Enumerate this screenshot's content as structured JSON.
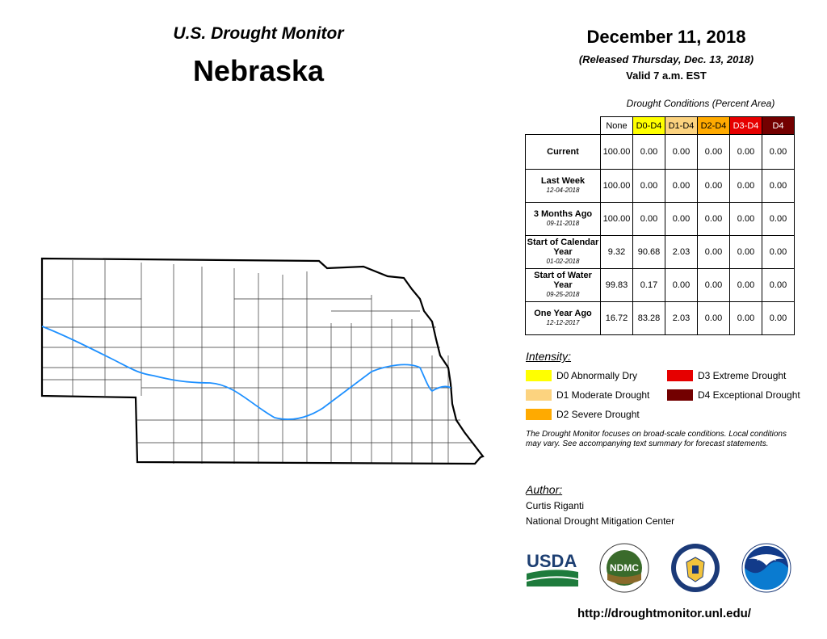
{
  "header": {
    "subtitle": "U.S. Drought Monitor",
    "state": "Nebraska"
  },
  "date": {
    "main": "December 11, 2018",
    "released": "(Released Thursday, Dec. 13, 2018)",
    "valid": "Valid 7 a.m. EST"
  },
  "table": {
    "caption": "Drought Conditions (Percent Area)",
    "columns": [
      {
        "label": "None",
        "color": "#ffffff"
      },
      {
        "label": "D0-D4",
        "color": "#ffff00"
      },
      {
        "label": "D1-D4",
        "color": "#fcd37f"
      },
      {
        "label": "D2-D4",
        "color": "#ffaa00"
      },
      {
        "label": "D3-D4",
        "color": "#e60000"
      },
      {
        "label": "D4",
        "color": "#730000"
      }
    ],
    "rows": [
      {
        "label": "Current",
        "date": "",
        "values": [
          "100.00",
          "0.00",
          "0.00",
          "0.00",
          "0.00",
          "0.00"
        ]
      },
      {
        "label": "Last Week",
        "date": "12-04-2018",
        "values": [
          "100.00",
          "0.00",
          "0.00",
          "0.00",
          "0.00",
          "0.00"
        ]
      },
      {
        "label": "3 Months Ago",
        "date": "09-11-2018",
        "values": [
          "100.00",
          "0.00",
          "0.00",
          "0.00",
          "0.00",
          "0.00"
        ]
      },
      {
        "label": "Start of Calendar Year",
        "date": "01-02-2018",
        "values": [
          "9.32",
          "90.68",
          "2.03",
          "0.00",
          "0.00",
          "0.00"
        ]
      },
      {
        "label": "Start of Water Year",
        "date": "09-25-2018",
        "values": [
          "99.83",
          "0.17",
          "0.00",
          "0.00",
          "0.00",
          "0.00"
        ]
      },
      {
        "label": "One Year Ago",
        "date": "12-12-2017",
        "values": [
          "16.72",
          "83.28",
          "2.03",
          "0.00",
          "0.00",
          "0.00"
        ]
      }
    ]
  },
  "legend": {
    "title": "Intensity:",
    "items": [
      {
        "label": "D0 Abnormally Dry",
        "color": "#ffff00"
      },
      {
        "label": "D1 Moderate Drought",
        "color": "#fcd37f"
      },
      {
        "label": "D2 Severe Drought",
        "color": "#ffaa00"
      },
      {
        "label": "D3 Extreme Drought",
        "color": "#e60000"
      },
      {
        "label": "D4 Exceptional Drought",
        "color": "#730000"
      }
    ]
  },
  "note": "The Drought Monitor focuses on broad-scale conditions. Local conditions may vary. See accompanying text summary for forecast statements.",
  "author": {
    "title": "Author:",
    "name": "Curtis Riganti",
    "org": "National Drought Mitigation Center"
  },
  "logos": {
    "usda": "USDA",
    "ndmc": "NDMC",
    "noaa": "NOAA"
  },
  "url": "http://droughtmonitor.unl.edu/",
  "map": {
    "river_color": "#1e90ff"
  }
}
